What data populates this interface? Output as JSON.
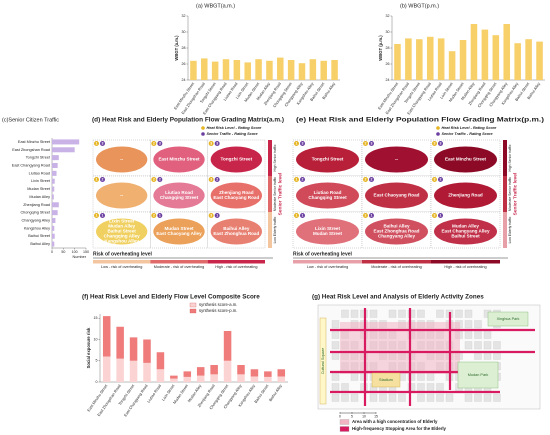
{
  "chart_data": [
    {
      "type": "bar",
      "title": "(a) WBGT(a.m.)",
      "y_label": "WBGT (a.m.)",
      "color": "#f7d06a",
      "categories": [
        "East Minzhu Street",
        "East Zhongshan Road",
        "Tongzhi Street",
        "East Changyang Road",
        "Liutiao Road",
        "Lixin Street",
        "Mudan Street",
        "Mudan Alley",
        "Zhenjiang Road",
        "Chongqing Street",
        "Changyang Alley",
        "Kangshou Alley",
        "Baihui Street",
        "Baihui Alley"
      ],
      "values": [
        26.4,
        26.7,
        26.3,
        26.6,
        26.5,
        26.2,
        26.6,
        26.4,
        26.8,
        26.5,
        26.1,
        26.6,
        26.4,
        26.5
      ],
      "ylim": [
        24,
        32
      ],
      "yticks": [
        24,
        26,
        28,
        30,
        32
      ]
    },
    {
      "type": "bar",
      "title": "(b) WBGT(p.m.)",
      "y_label": "WBGT (p.m.)",
      "color": "#f7d06a",
      "categories": [
        "East Minzhu Street",
        "East Zhongshan Road",
        "Tongzhi Street",
        "East Changyang Road",
        "Liutiao Road",
        "Lixin Street",
        "Mudan Street",
        "Mudan Alley",
        "Zhenjiang Road",
        "Chongqing Street",
        "Changyang Alley",
        "Kangshou Alley",
        "Baihui Street",
        "Baihui Alley"
      ],
      "values": [
        28.5,
        29.2,
        29.1,
        29.4,
        29.2,
        27.6,
        29.0,
        31.0,
        30.3,
        29.6,
        31.0,
        28.6,
        29.1,
        28.8
      ],
      "ylim": [
        24,
        32
      ],
      "yticks": [
        24,
        26,
        28,
        30,
        32
      ]
    },
    {
      "type": "hbar",
      "title": "(c)Senior Citizen Traffic",
      "x_label": "Number",
      "color": "#c9b3e6",
      "categories": [
        "East Minzhu Street",
        "East Zhongshan Road",
        "Tongzhi Street",
        "East Changyang Road",
        "Liutiao Road",
        "Lixin Street",
        "Mudan Street",
        "Mudan Alley",
        "Zhenjiang Road",
        "Chongqing Street",
        "Changyang Alley",
        "Kangshou Alley",
        "Baihui Street",
        "Baihui Alley"
      ],
      "values": [
        120,
        100,
        30,
        25,
        20,
        12,
        10,
        8,
        30,
        25,
        15,
        10,
        12,
        10
      ],
      "xlim": [
        0,
        150
      ],
      "xticks": [
        0,
        50,
        100,
        150
      ]
    },
    {
      "type": "stacked_bar",
      "title": "(f) Heat Risk Level and Elderly Flow Level Composite Score",
      "y_label": "Social exposure risk",
      "categories": [
        "East Minzhu Street",
        "East Zhongshan Road",
        "Tongzhi Street",
        "East Changyang Road",
        "Liutiao Road",
        "Lixin Street",
        "Mudan Street",
        "Mudan Alley",
        "Zhenjiang Road",
        "Chongqing Street",
        "Changyang Alley",
        "Kangshou Alley",
        "Baihui Street",
        "Baihui Alley"
      ],
      "series": [
        {
          "name": "synthesis score-a.m.",
          "color": "#fbd3d3",
          "values": [
            6,
            5.5,
            5,
            4.5,
            3,
            0.8,
            1.2,
            1.5,
            1.8,
            5,
            1.8,
            1.3,
            1.2,
            1.3
          ]
        },
        {
          "name": "synthesis score-p.m.",
          "color": "#ef7b7b",
          "values": [
            9.5,
            7.5,
            5.5,
            5.5,
            4,
            0.7,
            1.3,
            2,
            2.2,
            7,
            2.2,
            1.7,
            1.3,
            1.7
          ]
        }
      ],
      "ylim": [
        0,
        16
      ],
      "yticks": [
        0,
        5,
        10,
        15
      ]
    }
  ],
  "matrices": [
    {
      "title": "(d) Heat Risk and Elderly Population Flow Grading Matrix(a.m.)",
      "legend": [
        "Heat Risk Level - Rating Score",
        "Senior Traffic - Rating Score"
      ],
      "cells": [
        {
          "lines": [
            "--"
          ],
          "heat": "1",
          "traffic": "3",
          "color": "#e8945a"
        },
        {
          "lines": [
            "East Minzhu Street"
          ],
          "heat": "2",
          "traffic": "3",
          "color": "#e0607e"
        },
        {
          "lines": [
            "Tongzhi Street"
          ],
          "heat": "3",
          "traffic": "3",
          "color": "#c8254a"
        },
        {
          "lines": [
            "--"
          ],
          "heat": "1",
          "traffic": "2",
          "color": "#f0b070"
        },
        {
          "lines": [
            "Liutiao Road",
            "Changqing Street"
          ],
          "heat": "2",
          "traffic": "2",
          "color": "#e47a95"
        },
        {
          "lines": [
            "Zhenjiang Road",
            "East Chaoyang Road"
          ],
          "heat": "3",
          "traffic": "2",
          "color": "#e8706a"
        },
        {
          "lines": [
            "Lixin Street",
            "Mudan Alley",
            "Baihui Street",
            "Changqing Alley",
            "Kangshou Alley"
          ],
          "heat": "1",
          "traffic": "1",
          "color": "#f0d060"
        },
        {
          "lines": [
            "Mudan Street",
            "East Chaoyang Alley"
          ],
          "heat": "2",
          "traffic": "1",
          "color": "#eba15a"
        },
        {
          "lines": [
            "Baihui Alley",
            "East Zhonghua Road"
          ],
          "heat": "3",
          "traffic": "1",
          "color": "#e88072"
        }
      ],
      "x_axis_title": "Risk of overheating level",
      "x_levels": [
        "Low - risk of overheating",
        "Moderate - risk of overheating",
        "High - risk of overheating"
      ],
      "y_axis_title": "Senior Traffic level",
      "y_levels": [
        "Low Elderly traffic",
        "Moderate Senior traffic",
        "High Senior traffic"
      ]
    },
    {
      "title": "(e) Heat Risk and Elderly Population Flow Grading Matrix(p.m.)",
      "legend": [
        "Heat Risk Level - Rating Score",
        "Senior Traffic - Rating Score"
      ],
      "cells": [
        {
          "lines": [
            "Tongzhi Street"
          ],
          "heat": "1",
          "traffic": "3",
          "color": "#b8203a"
        },
        {
          "lines": [
            "--"
          ],
          "heat": "2",
          "traffic": "3",
          "color": "#a01030"
        },
        {
          "lines": [
            "East Minzhu Street"
          ],
          "heat": "3",
          "traffic": "3",
          "color": "#8c0a25"
        },
        {
          "lines": [
            "Liutiao Road",
            "Changqing Street"
          ],
          "heat": "1",
          "traffic": "2",
          "color": "#d04a5a"
        },
        {
          "lines": [
            "East Chaoyang Road"
          ],
          "heat": "2",
          "traffic": "2",
          "color": "#c03045"
        },
        {
          "lines": [
            "Zhenjiang Road"
          ],
          "heat": "3",
          "traffic": "2",
          "color": "#b01a35"
        },
        {
          "lines": [
            "Lixin Street",
            "Mudan Street"
          ],
          "heat": "1",
          "traffic": "1",
          "color": "#e0707a"
        },
        {
          "lines": [
            "Baihui Alley",
            "East Zhonghua Road",
            "Changyang Alley"
          ],
          "heat": "2",
          "traffic": "1",
          "color": "#d05060"
        },
        {
          "lines": [
            "Mudan Alley",
            "East Changyang Alley",
            "Baihui Street"
          ],
          "heat": "3",
          "traffic": "1",
          "color": "#c03048"
        }
      ],
      "x_axis_title": "Risk of overheating level",
      "x_levels": [
        "Low - risk of overheating",
        "Moderate - risk of overheating",
        "High - risk of overheating"
      ],
      "y_axis_title": "Senior Traffic level",
      "y_levels": [
        "Low Elderly traffic",
        "Moderate Senior traffic",
        "High Senior traffic"
      ]
    }
  ],
  "map": {
    "title": "(g) Heat Risk Level and Analysis of Elderly Activity Zones",
    "places": [
      "Xinghua Park",
      "Mudan Park",
      "Stadium",
      "Cultural Square"
    ],
    "scale": [
      "0",
      "5",
      "10",
      "15"
    ],
    "legend": [
      "Area with a high concentration of Elderly",
      "High-frequency Stopping Area for the Elderly"
    ]
  }
}
